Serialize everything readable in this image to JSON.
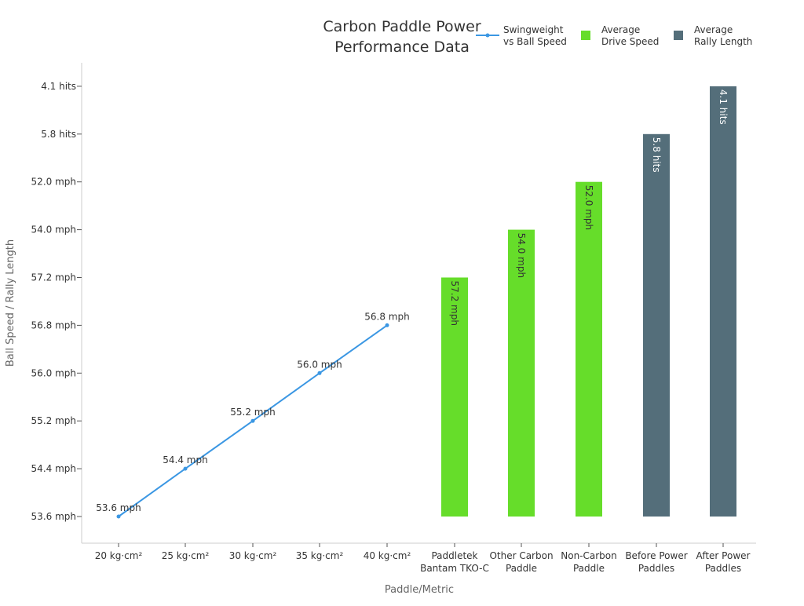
{
  "chart_data": {
    "type": "bar",
    "title_lines": [
      "Carbon Paddle Power",
      "Performance Data"
    ],
    "xlabel": "Paddle/Metric",
    "ylabel": "Ball Speed / Rally Length",
    "y_tick_labels": [
      "53.6 mph",
      "54.4 mph",
      "55.2 mph",
      "56.0 mph",
      "56.8 mph",
      "57.2 mph",
      "54.0 mph",
      "52.0 mph",
      "5.8 hits",
      "4.1 hits"
    ],
    "categories": [
      [
        "20 kg·cm²"
      ],
      [
        "25 kg·cm²"
      ],
      [
        "30 kg·cm²"
      ],
      [
        "35 kg·cm²"
      ],
      [
        "40 kg·cm²"
      ],
      [
        "Paddletek",
        "Bantam TKO-C"
      ],
      [
        "Other Carbon",
        "Paddle"
      ],
      [
        "Non-Carbon",
        "Paddle"
      ],
      [
        "Before Power",
        "Paddles"
      ],
      [
        "After Power",
        "Paddles"
      ]
    ],
    "legend": [
      {
        "lines": [
          "Swingweight",
          "vs Ball Speed"
        ],
        "kind": "line",
        "color": "#3b97e3"
      },
      {
        "lines": [
          "Average",
          "Drive Speed"
        ],
        "kind": "bar",
        "color": "#66dd2a"
      },
      {
        "lines": [
          "Average",
          "Rally Length"
        ],
        "kind": "bar",
        "color": "#546e7a"
      }
    ],
    "legend_position": "top-right",
    "series": [
      {
        "type": "line",
        "color": "#3b97e3",
        "points": [
          {
            "cat": 0,
            "level": 0,
            "label": "53.6 mph"
          },
          {
            "cat": 1,
            "level": 1,
            "label": "54.4 mph"
          },
          {
            "cat": 2,
            "level": 2,
            "label": "55.2 mph"
          },
          {
            "cat": 3,
            "level": 3,
            "label": "56.0 mph"
          },
          {
            "cat": 4,
            "level": 4,
            "label": "56.8 mph"
          }
        ]
      },
      {
        "type": "bar",
        "color": "#66dd2a",
        "label_color": "#333333",
        "bars": [
          {
            "cat": 5,
            "level": 5,
            "label": "57.2 mph"
          },
          {
            "cat": 6,
            "level": 6,
            "label": "54.0 mph"
          },
          {
            "cat": 7,
            "level": 7,
            "label": "52.0 mph"
          }
        ]
      },
      {
        "type": "bar",
        "color": "#546e7a",
        "label_color": "#ffffff",
        "bars": [
          {
            "cat": 8,
            "level": 8,
            "label": "5.8 hits"
          },
          {
            "cat": 9,
            "level": 9,
            "label": "4.1 hits"
          }
        ]
      }
    ],
    "grid": false
  }
}
